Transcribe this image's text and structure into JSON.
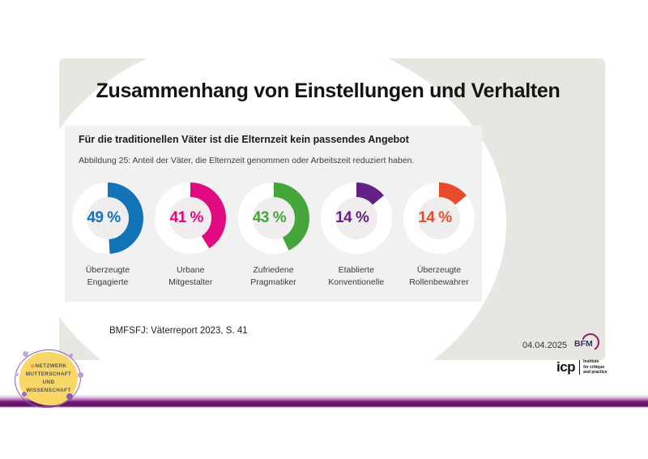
{
  "slide": {
    "title": "Zusammenhang von Einstellungen und Verhalten",
    "background_color": "#e8e6e1",
    "date": "04.04.2025",
    "source": "BMFSFJ: Väterreport 2023, S. 41",
    "panel": {
      "heading": "Für die traditionellen Väter ist die Elternzeit kein passendes Angebot",
      "caption": "Abbildung 25: Anteil der Väter, die Elternzeit genommen oder Arbeitszeit reduziert haben.",
      "background_color": "#f2f1f2"
    }
  },
  "chart_data": {
    "type": "pie",
    "variant": "donut-small-multiples",
    "title": "Anteil der Väter, die Elternzeit genommen oder Arbeitszeit reduziert haben",
    "unit": "%",
    "categories": [
      "Überzeugte Engagierte",
      "Urbane Mitgestalter",
      "Zufriedene Pragmatiker",
      "Etablierte Konventionelle",
      "Überzeugte Rollenbewahrer"
    ],
    "label_lines": [
      [
        "Überzeugte",
        "Engagierte"
      ],
      [
        "Urbane",
        "Mitgestalter"
      ],
      [
        "Zufriedene",
        "Pragmatiker"
      ],
      [
        "Etablierte",
        "Konventionelle"
      ],
      [
        "Überzeugte",
        "Rollenbewahrer"
      ]
    ],
    "values": [
      49,
      41,
      43,
      14,
      14
    ],
    "value_labels": [
      "49 %",
      "41 %",
      "43 %",
      "14 %",
      "14 %"
    ],
    "colors": [
      "#1373b7",
      "#e20a81",
      "#44a53b",
      "#632186",
      "#e84b2c"
    ],
    "ring_background": "#ffffff",
    "hole_color": "#efedee",
    "start_position": "12-oclock",
    "direction": "clockwise",
    "legend_position": "below-each-donut"
  },
  "footer": {
    "bfm_label": "BFM",
    "bfm_text_color": "#3d3358",
    "bfm_arc_color": "#8e2766",
    "icp_label": "icp",
    "icp_tagline_lines": [
      "Institute",
      "for critique",
      "and practice"
    ],
    "network_logo_lines": [
      "NETZWERK",
      "MUTTERSCHAFT",
      "UND",
      "WISSENSCHAFT"
    ],
    "accent_bar_color": "#6b156b"
  }
}
